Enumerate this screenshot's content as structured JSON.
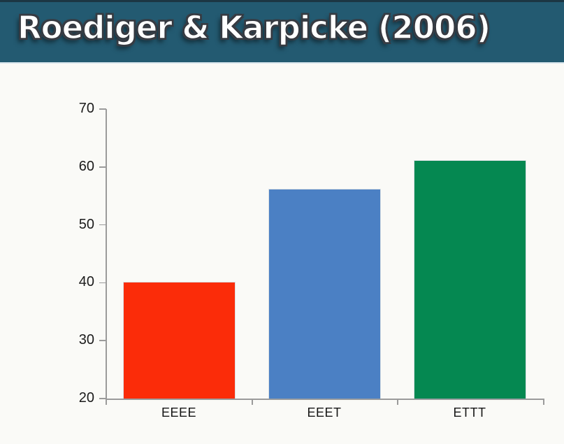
{
  "header": {
    "title": "Roediger & Karpicke (2006)",
    "background_color": "#235a71",
    "title_color": "#ffffff"
  },
  "chart_data": {
    "type": "bar",
    "title": "Roediger & Karpicke (2006)",
    "categories": [
      "EEEE",
      "EEET",
      "ETTT"
    ],
    "values": [
      40,
      56,
      61
    ],
    "bar_colors": [
      "#fb2c09",
      "#4b80c4",
      "#058851"
    ],
    "xlabel": "",
    "ylabel": "",
    "ylim": [
      20,
      70
    ],
    "yticks": [
      "70",
      "60",
      "50",
      "40",
      "30",
      "20"
    ],
    "grid": false,
    "legend": false,
    "axis_color": "#9b9b9b"
  }
}
